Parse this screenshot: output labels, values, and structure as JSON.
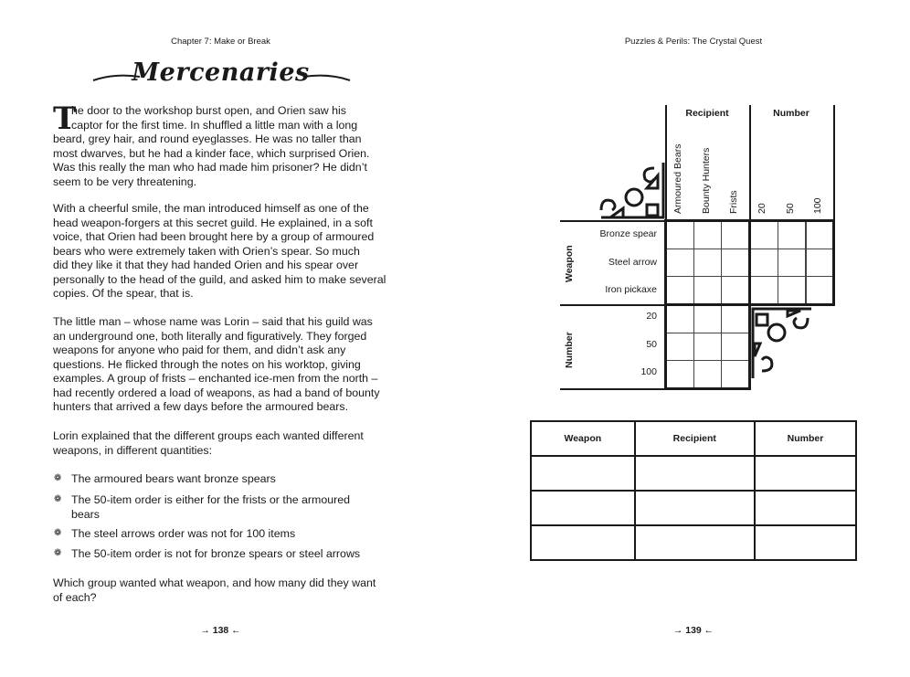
{
  "left_page": {
    "running_head": "Chapter 7: Make or Break",
    "title": "Mercenaries",
    "drop_cap": "T",
    "paragraphs": [
      [
        "he door to the workshop burst open, and Orien saw his",
        "captor for the first time. In shuffled a little man with a long",
        "beard, grey hair, and round eyeglasses. He was no taller than",
        "most dwarves, but he had a kinder face, which surprised Orien.",
        "Was this really the man who had made him prisoner? He didn’t",
        "seem to be very threatening."
      ],
      [
        "With a cheerful smile, the man introduced himself as one of the",
        "head weapon-forgers at this secret guild. He explained, in a soft",
        "voice, that Orien had been brought here by a group of armoured",
        "bears who were extremely taken with Orien’s spear. So much",
        "did they like it that they had handed Orien and his spear over",
        "personally to the head of the guild, and asked him to make several",
        "copies. Of the spear, that is."
      ],
      [
        "The little man – whose name was Lorin – said that his guild was",
        "an underground one, both literally and figuratively. They forged",
        "weapons for anyone who paid for them, and didn’t ask any",
        "questions. He flicked through the notes on his worktop, giving",
        "examples. A group of frists – enchanted ice-men from the north –",
        "had recently ordered a load of weapons, as had a band of bounty",
        "hunters that arrived a few days before the armoured bears."
      ],
      [
        "Lorin explained that the different groups each wanted different",
        "weapons, in different quantities:"
      ]
    ],
    "clues": [
      [
        "The armoured bears want bronze spears"
      ],
      [
        "The 50-item order is either for the frists or the armoured",
        "bears"
      ],
      [
        "The steel arrows order was not for 100 items"
      ],
      [
        "The 50-item order is not for bronze spears or steel arrows"
      ]
    ],
    "question": [
      "Which group wanted what weapon, and how many did they want",
      "of each?"
    ],
    "page_number": "138",
    "bullet_icon": "flower-bullet-icon"
  },
  "right_page": {
    "running_head": "Puzzles & Perils: The Crystal Quest",
    "grid": {
      "top_groups": [
        "Recipient",
        "Number"
      ],
      "recipients": [
        "Armoured Bears",
        "Bounty Hunters",
        "Frists"
      ],
      "numbers": [
        "20",
        "50",
        "100"
      ],
      "side_groups": [
        "Weapon",
        "Number"
      ],
      "weapons": [
        "Bronze spear",
        "Steel arrow",
        "Iron pickaxe"
      ],
      "side_numbers": [
        "20",
        "50",
        "100"
      ]
    },
    "answer_table": {
      "headers": [
        "Weapon",
        "Recipient",
        "Number"
      ],
      "rows": [
        [
          "",
          "",
          ""
        ],
        [
          "",
          "",
          ""
        ],
        [
          "",
          "",
          ""
        ]
      ]
    },
    "page_number": "139"
  }
}
